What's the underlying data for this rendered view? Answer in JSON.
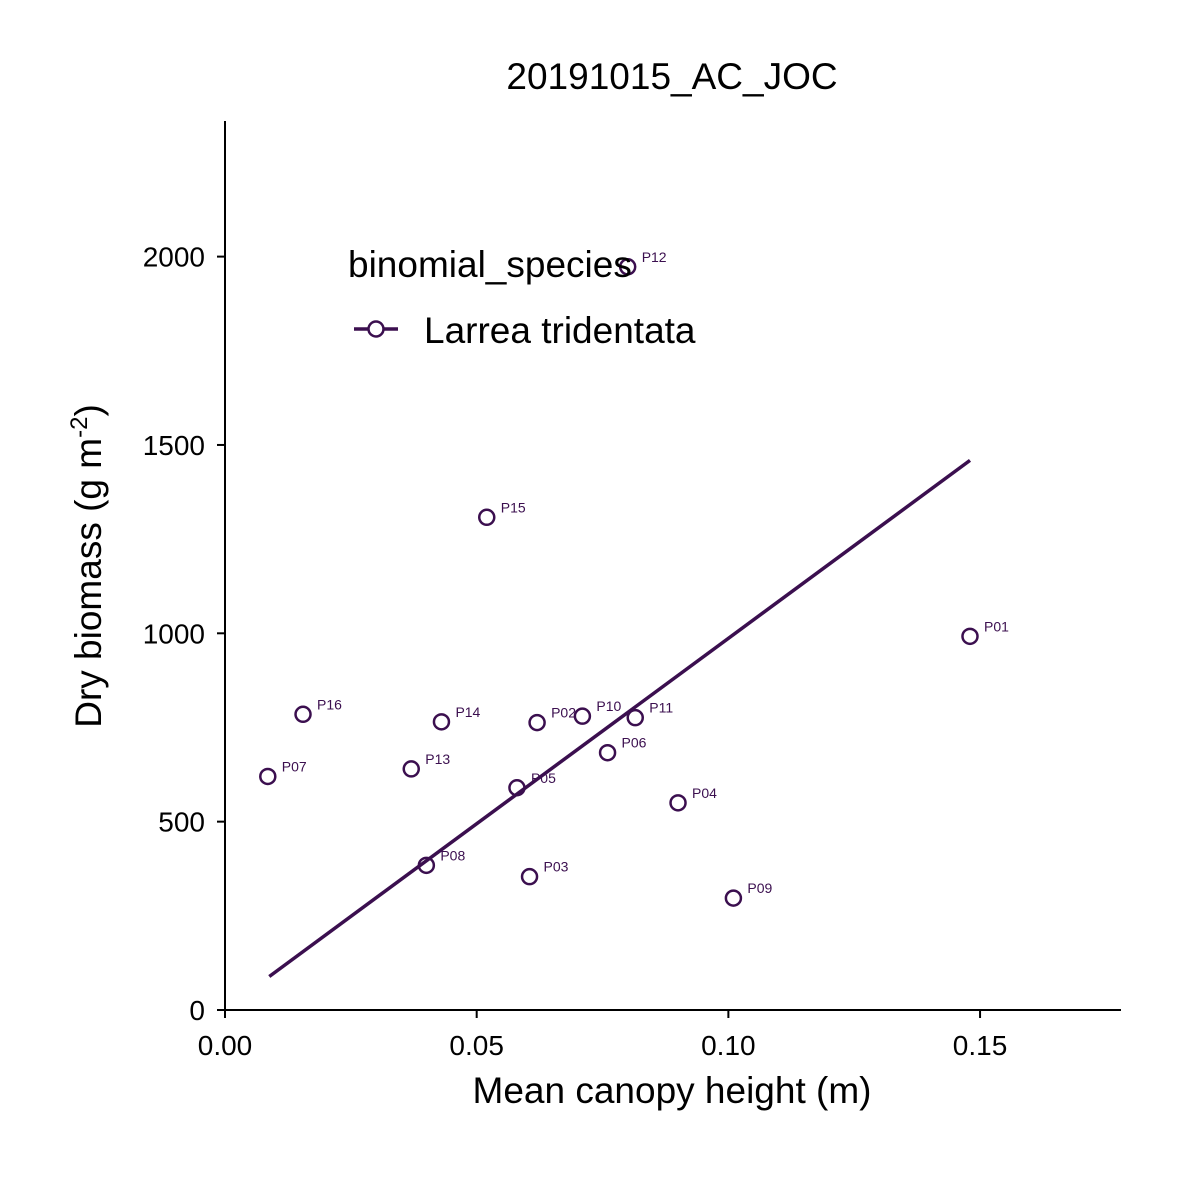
{
  "chart_data": {
    "type": "scatter",
    "title": "20191015_AC_JOC",
    "xlabel": "Mean canopy height (m)",
    "ylabel": {
      "main": "Dry biomass (g m",
      "superscript": "-2",
      "close": ")"
    },
    "xlim": [
      0.0,
      0.178
    ],
    "ylim": [
      0,
      2360
    ],
    "x_ticks": [
      {
        "value": 0.0,
        "label": "0.00"
      },
      {
        "value": 0.05,
        "label": "0.05"
      },
      {
        "value": 0.1,
        "label": "0.10"
      },
      {
        "value": 0.15,
        "label": "0.15"
      }
    ],
    "y_ticks": [
      {
        "value": 0,
        "label": "0"
      },
      {
        "value": 500,
        "label": "500"
      },
      {
        "value": 1000,
        "label": "1000"
      },
      {
        "value": 1500,
        "label": "1500"
      },
      {
        "value": 2000,
        "label": "2000"
      }
    ],
    "grid": false,
    "legend": {
      "title": "binomial_species",
      "placement": "top-left inside",
      "entries": [
        {
          "label": "Larrea tridentata"
        }
      ]
    },
    "series": [
      {
        "name": "Larrea tridentata",
        "color": "#3b0f4f",
        "points": [
          {
            "label": "P01",
            "x": 0.148,
            "y": 992
          },
          {
            "label": "P02",
            "x": 0.062,
            "y": 763
          },
          {
            "label": "P03",
            "x": 0.0605,
            "y": 354
          },
          {
            "label": "P04",
            "x": 0.09,
            "y": 550
          },
          {
            "label": "P05",
            "x": 0.058,
            "y": 590
          },
          {
            "label": "P06",
            "x": 0.076,
            "y": 683
          },
          {
            "label": "P07",
            "x": 0.0085,
            "y": 620
          },
          {
            "label": "P08",
            "x": 0.04,
            "y": 384
          },
          {
            "label": "P09",
            "x": 0.101,
            "y": 297
          },
          {
            "label": "P10",
            "x": 0.071,
            "y": 780
          },
          {
            "label": "P11",
            "x": 0.0815,
            "y": 776
          },
          {
            "label": "P12",
            "x": 0.08,
            "y": 1973
          },
          {
            "label": "P13",
            "x": 0.037,
            "y": 640
          },
          {
            "label": "P14",
            "x": 0.043,
            "y": 765
          },
          {
            "label": "P15",
            "x": 0.052,
            "y": 1308
          },
          {
            "label": "P16",
            "x": 0.0155,
            "y": 785
          }
        ],
        "fit_line": {
          "x": [
            0.0088,
            0.148
          ],
          "y": [
            89,
            1459
          ]
        }
      }
    ]
  }
}
